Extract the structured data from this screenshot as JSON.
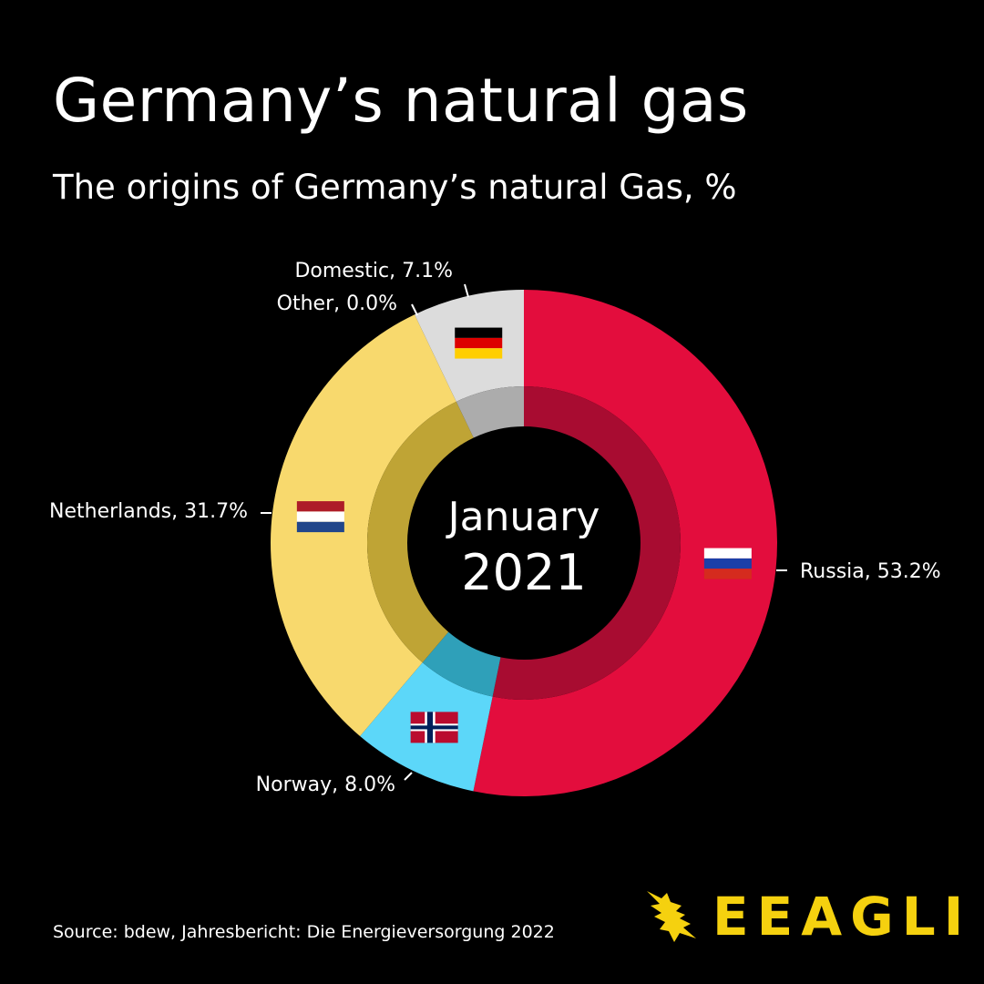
{
  "header": {
    "title": "Germany’s natural gas",
    "subtitle": "The origins of Germany’s natural Gas, %"
  },
  "chart_data": {
    "type": "pie",
    "donut": true,
    "center_label": [
      "January",
      "2021"
    ],
    "unit": "%",
    "series": [
      {
        "name": "Russia",
        "label": "Russia, 53.2%",
        "value": 53.2,
        "color": "#e30d3d",
        "inner_color": "#a80c31",
        "flag": "russia-flag"
      },
      {
        "name": "Norway",
        "label": "Norway, 8.0%",
        "value": 8.0,
        "color": "#5cd7f9",
        "inner_color": "#2fa0b9",
        "flag": "norway-flag"
      },
      {
        "name": "Netherlands",
        "label": "Netherlands, 31.7%",
        "value": 31.7,
        "color": "#f8d96d",
        "inner_color": "#bfa435",
        "flag": "netherlands-flag"
      },
      {
        "name": "Other",
        "label": "Other, 0.0%",
        "value": 0.0,
        "color": "#9e9e9e",
        "inner_color": "#7a7a7a",
        "flag": ""
      },
      {
        "name": "Domestic",
        "label": "Domestic, 7.1%",
        "value": 7.1,
        "color": "#dcdcdc",
        "inner_color": "#acacac",
        "flag": "germany-flag"
      }
    ]
  },
  "footer": {
    "source": "Source: bdew, Jahresbericht: Die Energieversorgung 2022",
    "logo_text": "EEAGLI",
    "logo_color": "#f5d10f"
  }
}
